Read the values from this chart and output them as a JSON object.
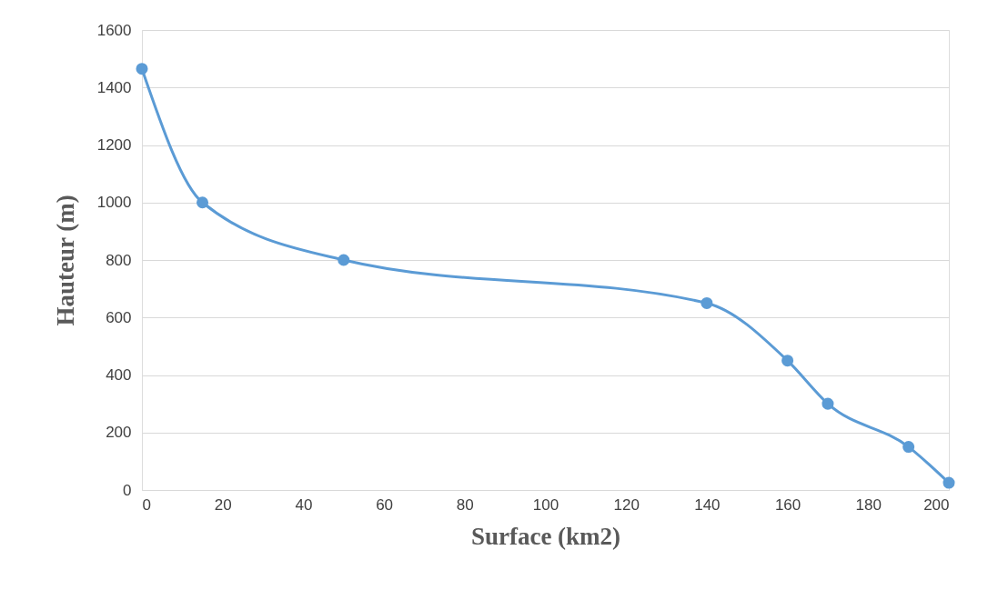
{
  "chart_data": {
    "type": "line",
    "xlabel": "Surface (km2)",
    "ylabel": "Hauteur (m)",
    "x": [
      0,
      15,
      50,
      140,
      160,
      170,
      190,
      200
    ],
    "series": [
      {
        "color": "#5b9bd5",
        "values": [
          1465,
          1000,
          800,
          650,
          450,
          300,
          150,
          25
        ]
      }
    ],
    "xlim": [
      0,
      200
    ],
    "xticks": [
      0,
      20,
      40,
      60,
      80,
      100,
      120,
      140,
      160,
      180,
      200
    ],
    "ylim": [
      0,
      1600
    ],
    "yticks": [
      0,
      200,
      400,
      600,
      800,
      1000,
      1200,
      1400,
      1600
    ],
    "grid": "y",
    "marker": "circle",
    "line_style": "solid"
  }
}
